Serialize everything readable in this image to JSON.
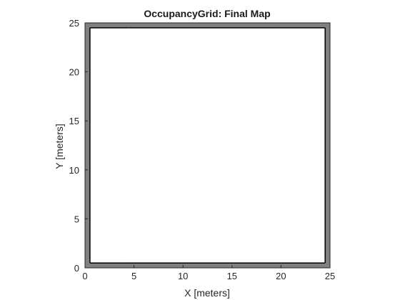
{
  "chart_data": {
    "type": "heatmap",
    "title": "OccupancyGrid: Final Map",
    "xlabel": "X [meters]",
    "ylabel": "Y [meters]",
    "xlim": [
      0,
      25
    ],
    "ylim": [
      0,
      25
    ],
    "xticks": [
      0,
      5,
      10,
      15,
      20,
      25
    ],
    "yticks": [
      0,
      5,
      10,
      15,
      20,
      25
    ],
    "grid": false,
    "colormap": "grayscale (white = free, gray = unknown, black = occupied)",
    "colors": {
      "free": "#ffffff",
      "unknown": "#808080",
      "occupied": "#000000"
    },
    "unknown_regions": [
      {
        "name": "left-border",
        "x": [
          0.0,
          0.5
        ],
        "y": [
          0.0,
          25.0
        ]
      },
      {
        "name": "right-border",
        "x": [
          24.5,
          25.0
        ],
        "y": [
          0.0,
          25.0
        ]
      },
      {
        "name": "bottom-border",
        "x": [
          0.0,
          25.0
        ],
        "y": [
          0.0,
          0.5
        ]
      },
      {
        "name": "top-border",
        "x": [
          0.0,
          25.0
        ],
        "y": [
          24.5,
          25.0
        ]
      }
    ],
    "occupied_segments": [
      {
        "name": "bottom-wall-main",
        "x": [
          4.0,
          19.5
        ],
        "y": [
          0.45,
          0.55
        ]
      },
      {
        "name": "bottom-wall-left",
        "x": [
          0.5,
          4.0
        ],
        "y": [
          0.5,
          0.55
        ]
      },
      {
        "name": "bottom-wall-right",
        "x": [
          19.5,
          24.5
        ],
        "y": [
          0.5,
          0.55
        ]
      },
      {
        "name": "top-wall-main",
        "x": [
          4.5,
          19.5
        ],
        "y": [
          24.45,
          24.55
        ]
      },
      {
        "name": "top-wall-left",
        "x": [
          0.5,
          4.5
        ],
        "y": [
          24.5,
          24.55
        ]
      },
      {
        "name": "top-wall-right",
        "x": [
          19.5,
          24.5
        ],
        "y": [
          24.5,
          24.55
        ]
      },
      {
        "name": "left-wall",
        "x": [
          0.45,
          0.55
        ],
        "y": [
          0.5,
          24.5
        ]
      },
      {
        "name": "right-wall",
        "x": [
          24.45,
          24.55
        ],
        "y": [
          0.5,
          24.5
        ]
      }
    ]
  }
}
